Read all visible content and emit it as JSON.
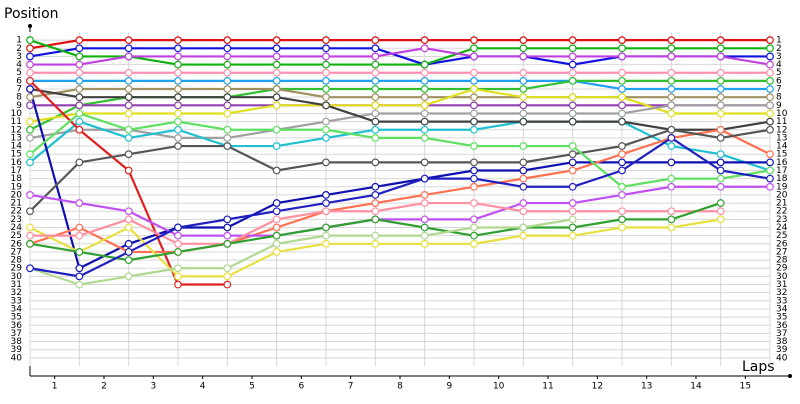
{
  "chart_data": {
    "type": "line",
    "y_label": "Position",
    "x_label": "Laps",
    "x": [
      0,
      1,
      2,
      3,
      4,
      5,
      6,
      7,
      8,
      9,
      10,
      11,
      12,
      13,
      14,
      15
    ],
    "xlim": [
      0,
      15.4
    ],
    "xticks": [
      {
        "value": 0.5,
        "label": "1"
      },
      {
        "value": 1.5,
        "label": "2"
      },
      {
        "value": 2.5,
        "label": "3"
      },
      {
        "value": 3.5,
        "label": "4"
      },
      {
        "value": 4.5,
        "label": "5"
      },
      {
        "value": 5.5,
        "label": "6"
      },
      {
        "value": 6.5,
        "label": "7"
      },
      {
        "value": 7.5,
        "label": "8"
      },
      {
        "value": 8.5,
        "label": "9"
      },
      {
        "value": 9.5,
        "label": "10"
      },
      {
        "value": 10.5,
        "label": "11"
      },
      {
        "value": 11.5,
        "label": "12"
      },
      {
        "value": 12.5,
        "label": "13"
      },
      {
        "value": 13.5,
        "label": "14"
      },
      {
        "value": 14.5,
        "label": "15"
      }
    ],
    "ylim": [
      41,
      0
    ],
    "yticks": [
      1,
      2,
      3,
      4,
      5,
      6,
      7,
      8,
      9,
      10,
      11,
      12,
      13,
      14,
      15,
      16,
      17,
      18,
      19,
      20,
      21,
      22,
      23,
      24,
      25,
      26,
      27,
      28,
      29,
      30,
      31,
      32,
      33,
      34,
      35,
      36,
      37,
      38,
      39,
      40
    ],
    "grid": true,
    "series": [
      {
        "color": "#e01010",
        "values": [
          2,
          1,
          1,
          1,
          1,
          1,
          1,
          1,
          1,
          1,
          1,
          1,
          1,
          1,
          1,
          1
        ]
      },
      {
        "color": "#1010e0",
        "values": [
          3,
          2,
          2,
          2,
          2,
          2,
          2,
          2,
          4,
          3,
          3,
          4,
          3,
          3,
          3,
          3
        ]
      },
      {
        "color": "#10b010",
        "values": [
          1,
          3,
          3,
          4,
          4,
          4,
          4,
          4,
          4,
          2,
          2,
          2,
          2,
          2,
          2,
          2
        ]
      },
      {
        "color": "#c040e0",
        "values": [
          4,
          4,
          3,
          3,
          3,
          3,
          3,
          3,
          2,
          3,
          3,
          3,
          3,
          3,
          3,
          4
        ]
      },
      {
        "color": "#ff90b0",
        "values": [
          5,
          5,
          5,
          5,
          5,
          5,
          5,
          5,
          5,
          5,
          5,
          5,
          5,
          5,
          5,
          5
        ]
      },
      {
        "color": "#20a0f0",
        "values": [
          6,
          6,
          6,
          6,
          6,
          6,
          6,
          6,
          6,
          6,
          6,
          6,
          7,
          7,
          7,
          7
        ]
      },
      {
        "color": "#30c030",
        "values": [
          12,
          9,
          8,
          8,
          8,
          7,
          7,
          7,
          7,
          7,
          7,
          6,
          6,
          6,
          6,
          6
        ]
      },
      {
        "color": "#a09060",
        "values": [
          8,
          7,
          7,
          7,
          7,
          7,
          8,
          8,
          8,
          8,
          8,
          8,
          8,
          8,
          8,
          8
        ]
      },
      {
        "color": "#9040b0",
        "values": [
          9,
          9,
          9,
          9,
          9,
          9,
          9,
          9,
          9,
          9,
          9,
          9,
          9,
          9,
          9,
          9
        ]
      },
      {
        "color": "#e0e020",
        "values": [
          11,
          10,
          10,
          10,
          10,
          9,
          9,
          9,
          9,
          7,
          8,
          8,
          8,
          10,
          10,
          10
        ]
      },
      {
        "color": "#a0a0a0",
        "values": [
          13,
          12,
          12,
          13,
          13,
          12,
          11,
          10,
          10,
          10,
          10,
          10,
          10,
          9,
          9,
          9
        ]
      },
      {
        "color": "#20c0d0",
        "values": [
          16,
          11,
          13,
          12,
          14,
          14,
          13,
          12,
          12,
          12,
          11,
          11,
          11,
          14,
          15,
          17
        ]
      },
      {
        "color": "#404040",
        "values": [
          7,
          8,
          8,
          8,
          8,
          8,
          9,
          11,
          11,
          11,
          11,
          11,
          11,
          12,
          12,
          11
        ]
      },
      {
        "color": "#1010b0",
        "values": [
          7,
          29,
          26,
          24,
          24,
          21,
          20,
          19,
          18,
          17,
          17,
          16,
          16,
          16,
          16,
          16
        ]
      },
      {
        "color": "#e02020",
        "values": [
          6,
          12,
          17,
          31,
          31,
          null,
          null,
          null,
          null,
          null,
          null,
          null,
          null,
          null,
          null,
          null
        ]
      },
      {
        "color": "#ff7050",
        "values": [
          26,
          24,
          27,
          27,
          26,
          24,
          22,
          21,
          20,
          19,
          18,
          17,
          15,
          13,
          12,
          15
        ]
      },
      {
        "color": "#555555",
        "values": [
          22,
          16,
          15,
          14,
          14,
          17,
          16,
          16,
          16,
          16,
          16,
          15,
          14,
          12,
          13,
          12
        ]
      },
      {
        "color": "#60e060",
        "values": [
          15,
          10,
          12,
          11,
          12,
          12,
          12,
          13,
          13,
          14,
          14,
          14,
          19,
          18,
          18,
          17
        ]
      },
      {
        "color": "#e8e040",
        "values": [
          24,
          27,
          24,
          30,
          30,
          27,
          26,
          26,
          26,
          26,
          25,
          25,
          24,
          24,
          23,
          null
        ]
      },
      {
        "color": "#c050f0",
        "values": [
          20,
          21,
          22,
          25,
          25,
          25,
          24,
          23,
          23,
          23,
          21,
          21,
          20,
          19,
          19,
          19
        ]
      },
      {
        "color": "#ff90a0",
        "values": [
          25,
          25,
          23,
          26,
          26,
          23,
          22,
          22,
          21,
          21,
          22,
          22,
          22,
          22,
          22,
          null
        ]
      },
      {
        "color": "#30a030",
        "values": [
          26,
          27,
          28,
          27,
          26,
          25,
          24,
          23,
          24,
          25,
          24,
          24,
          23,
          23,
          21,
          null
        ]
      },
      {
        "color": "#b0d890",
        "values": [
          29,
          31,
          30,
          29,
          29,
          26,
          25,
          25,
          25,
          24,
          24,
          23,
          null,
          null,
          null,
          null
        ]
      },
      {
        "color": "#2020c0",
        "values": [
          29,
          30,
          27,
          24,
          23,
          22,
          21,
          20,
          18,
          18,
          19,
          19,
          17,
          13,
          17,
          18
        ]
      }
    ]
  }
}
